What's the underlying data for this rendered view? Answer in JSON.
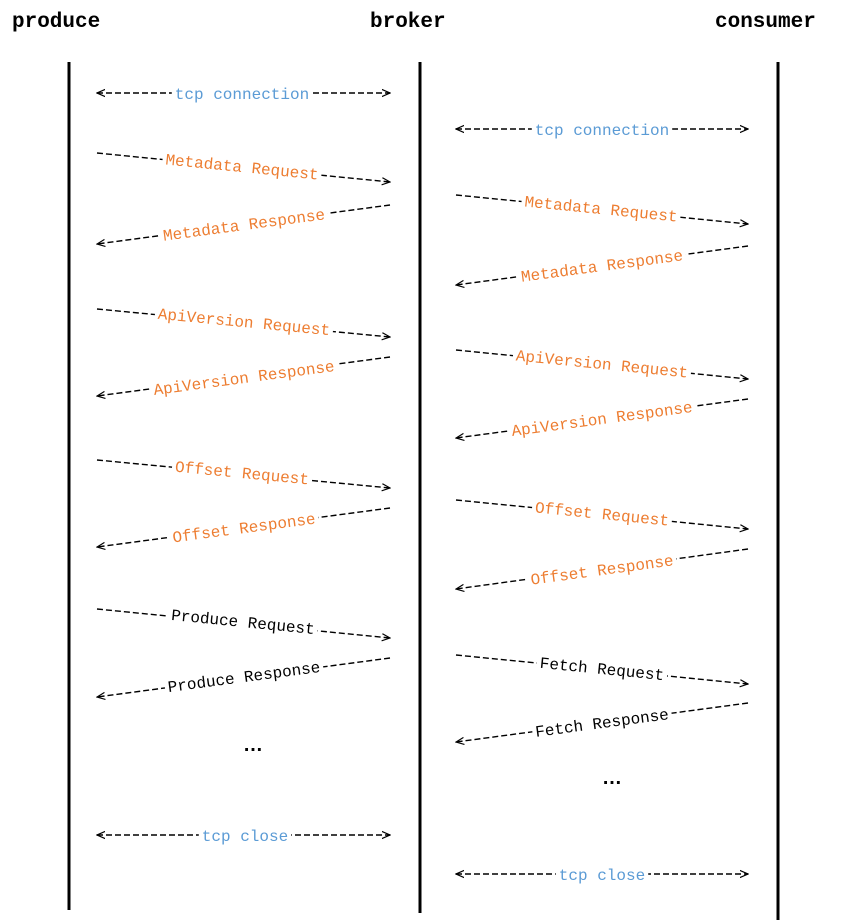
{
  "actors": {
    "produce": "produce",
    "broker": "broker",
    "consumer": "consumer"
  },
  "colors": {
    "connection": "#5b9bd5",
    "handshake": "#ed7d31",
    "data": "#000000"
  },
  "producer_messages": [
    {
      "label": "tcp connection",
      "direction": "both",
      "kind": "connection"
    },
    {
      "label": "Metadata Request",
      "direction": "to-broker",
      "kind": "handshake"
    },
    {
      "label": "Metadata Response",
      "direction": "from-broker",
      "kind": "handshake"
    },
    {
      "label": "ApiVersion Request",
      "direction": "to-broker",
      "kind": "handshake"
    },
    {
      "label": "ApiVersion Response",
      "direction": "from-broker",
      "kind": "handshake"
    },
    {
      "label": "Offset Request",
      "direction": "to-broker",
      "kind": "handshake"
    },
    {
      "label": "Offset Response",
      "direction": "from-broker",
      "kind": "handshake"
    },
    {
      "label": "Produce Request",
      "direction": "to-broker",
      "kind": "data"
    },
    {
      "label": "Produce Response",
      "direction": "from-broker",
      "kind": "data"
    },
    {
      "label": "…",
      "direction": "none",
      "kind": "ellipsis"
    },
    {
      "label": "tcp close",
      "direction": "both",
      "kind": "connection"
    }
  ],
  "consumer_messages": [
    {
      "label": "tcp connection",
      "direction": "both",
      "kind": "connection"
    },
    {
      "label": "Metadata Request",
      "direction": "to-consumer",
      "kind": "handshake"
    },
    {
      "label": "Metadata Response",
      "direction": "from-consumer",
      "kind": "handshake"
    },
    {
      "label": "ApiVersion Request",
      "direction": "to-consumer",
      "kind": "handshake"
    },
    {
      "label": "ApiVersion Response",
      "direction": "from-consumer",
      "kind": "handshake"
    },
    {
      "label": "Offset Request",
      "direction": "to-consumer",
      "kind": "handshake"
    },
    {
      "label": "Offset Response",
      "direction": "from-consumer",
      "kind": "handshake"
    },
    {
      "label": "Fetch Request",
      "direction": "to-consumer",
      "kind": "data"
    },
    {
      "label": "Fetch Response",
      "direction": "from-consumer",
      "kind": "data"
    },
    {
      "label": "…",
      "direction": "none",
      "kind": "ellipsis"
    },
    {
      "label": "tcp close",
      "direction": "both",
      "kind": "connection"
    }
  ]
}
